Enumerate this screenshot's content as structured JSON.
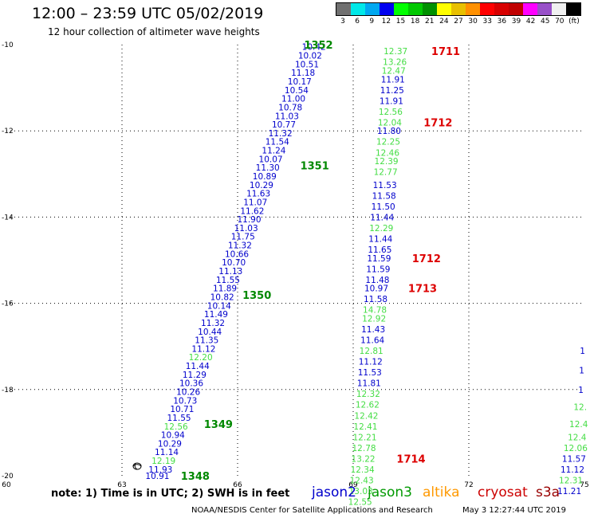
{
  "header": {
    "title": "12:00 – 23:59 UTC 05/02/2019",
    "subtitle": "12 hour collection of altimeter wave heights"
  },
  "legend": {
    "colors": [
      "#707070",
      "#00e8e8",
      "#00a8f0",
      "#0000f0",
      "#00ff00",
      "#00c800",
      "#009000",
      "#ffff00",
      "#e8c000",
      "#ff9000",
      "#ff0000",
      "#d80000",
      "#c00000",
      "#ff00ff",
      "#9850c8",
      "#f0f0f0",
      "#000000"
    ],
    "labels": [
      "3",
      "6",
      "9",
      "12",
      "15",
      "18",
      "21",
      "24",
      "27",
      "30",
      "33",
      "36",
      "39",
      "42",
      "45",
      "70",
      "(ft)"
    ]
  },
  "satellites": [
    {
      "name": "jason2",
      "color": "#0000cc"
    },
    {
      "name": "jason3",
      "color": "#009900"
    },
    {
      "name": "altika",
      "color": "#ff9900"
    },
    {
      "name": "cryosat",
      "color": "#cc0000"
    },
    {
      "name": "s3a",
      "color": "#990000"
    }
  ],
  "note": "note: 1) Time is in UTC; 2) SWH is in feet",
  "footer": {
    "credit": "NOAA/NESDIS Center for Satellite Applications and Research",
    "generated": "May  3 12:27:44 UTC 2019"
  },
  "chart_data": {
    "type": "scatter",
    "title": "12:00 – 23:59 UTC 05/02/2019",
    "subtitle": "12 hour collection of altimeter wave heights",
    "xlim": [
      60,
      75
    ],
    "ylim": [
      -20,
      -10
    ],
    "x_ticks": [
      "60",
      "63",
      "66",
      "69",
      "72",
      "75"
    ],
    "y_ticks": [
      "-10",
      "-12",
      "-14",
      "-16",
      "-18",
      "-20"
    ],
    "grid": true,
    "colors": {
      "blue": "#0000cc",
      "green": "#44dd44",
      "track_green": "#008800",
      "red": "#dd0000"
    },
    "tracks": [
      {
        "values": [
          {
            "v": "10.42",
            "x": 67.98,
            "y": -10.05,
            "c": "blue"
          },
          {
            "v": "10.02",
            "x": 67.88,
            "y": -10.25,
            "c": "blue"
          },
          {
            "v": "10.51",
            "x": 67.8,
            "y": -10.45,
            "c": "blue"
          },
          {
            "v": "11.18",
            "x": 67.7,
            "y": -10.65,
            "c": "blue"
          },
          {
            "v": "10.17",
            "x": 67.61,
            "y": -10.85,
            "c": "blue"
          },
          {
            "v": "10.54",
            "x": 67.53,
            "y": -11.05,
            "c": "blue"
          },
          {
            "v": "11.00",
            "x": 67.45,
            "y": -11.25,
            "c": "blue"
          },
          {
            "v": "10.78",
            "x": 67.37,
            "y": -11.45,
            "c": "blue"
          },
          {
            "v": "11.03",
            "x": 67.28,
            "y": -11.65,
            "c": "blue"
          },
          {
            "v": "10.77",
            "x": 67.2,
            "y": -11.85,
            "c": "blue"
          },
          {
            "v": "11.32",
            "x": 67.11,
            "y": -12.05,
            "c": "blue"
          },
          {
            "v": "11.54",
            "x": 67.03,
            "y": -12.25,
            "c": "blue"
          },
          {
            "v": "11.24",
            "x": 66.94,
            "y": -12.45,
            "c": "blue"
          },
          {
            "v": "10.07",
            "x": 66.86,
            "y": -12.65,
            "c": "blue"
          },
          {
            "v": "11.30",
            "x": 66.78,
            "y": -12.85,
            "c": "blue"
          },
          {
            "v": "10.89",
            "x": 66.7,
            "y": -13.05,
            "c": "blue"
          },
          {
            "v": "10.29",
            "x": 66.62,
            "y": -13.25,
            "c": "blue"
          },
          {
            "v": "11.63",
            "x": 66.54,
            "y": -13.45,
            "c": "blue"
          },
          {
            "v": "11.07",
            "x": 66.46,
            "y": -13.65,
            "c": "blue"
          },
          {
            "v": "11.62",
            "x": 66.38,
            "y": -13.85,
            "c": "blue"
          },
          {
            "v": "11.90",
            "x": 66.3,
            "y": -14.05,
            "c": "blue"
          },
          {
            "v": "11.03",
            "x": 66.22,
            "y": -14.25,
            "c": "blue"
          },
          {
            "v": "11.75",
            "x": 66.14,
            "y": -14.45,
            "c": "blue"
          },
          {
            "v": "11.32",
            "x": 66.06,
            "y": -14.65,
            "c": "blue"
          },
          {
            "v": "10.66",
            "x": 65.98,
            "y": -14.85,
            "c": "blue"
          },
          {
            "v": "10.70",
            "x": 65.9,
            "y": -15.05,
            "c": "blue"
          },
          {
            "v": "11.13",
            "x": 65.82,
            "y": -15.25,
            "c": "blue"
          },
          {
            "v": "11.55",
            "x": 65.75,
            "y": -15.45,
            "c": "blue"
          },
          {
            "v": "11.89",
            "x": 65.67,
            "y": -15.65,
            "c": "blue"
          },
          {
            "v": "10.82",
            "x": 65.6,
            "y": -15.85,
            "c": "blue"
          },
          {
            "v": "10.14",
            "x": 65.52,
            "y": -16.05,
            "c": "blue"
          },
          {
            "v": "11.49",
            "x": 65.44,
            "y": -16.25,
            "c": "blue"
          },
          {
            "v": "11.32",
            "x": 65.36,
            "y": -16.45,
            "c": "blue"
          },
          {
            "v": "10.44",
            "x": 65.28,
            "y": -16.65,
            "c": "blue"
          },
          {
            "v": "11.35",
            "x": 65.2,
            "y": -16.85,
            "c": "blue"
          },
          {
            "v": "11.12",
            "x": 65.12,
            "y": -17.05,
            "c": "blue"
          },
          {
            "v": "12.20",
            "x": 65.04,
            "y": -17.25,
            "c": "green"
          },
          {
            "v": "11.44",
            "x": 64.96,
            "y": -17.45,
            "c": "blue"
          },
          {
            "v": "11.29",
            "x": 64.88,
            "y": -17.65,
            "c": "blue"
          },
          {
            "v": "10.36",
            "x": 64.8,
            "y": -17.85,
            "c": "blue"
          },
          {
            "v": "10.26",
            "x": 64.72,
            "y": -18.05,
            "c": "blue"
          },
          {
            "v": "10.73",
            "x": 64.64,
            "y": -18.25,
            "c": "blue"
          },
          {
            "v": "10.71",
            "x": 64.56,
            "y": -18.45,
            "c": "blue"
          },
          {
            "v": "11.55",
            "x": 64.48,
            "y": -18.65,
            "c": "blue"
          },
          {
            "v": "12.56",
            "x": 64.4,
            "y": -18.85,
            "c": "green"
          },
          {
            "v": "10.94",
            "x": 64.32,
            "y": -19.05,
            "c": "blue"
          },
          {
            "v": "10.29",
            "x": 64.24,
            "y": -19.25,
            "c": "blue"
          },
          {
            "v": "11.14",
            "x": 64.16,
            "y": -19.45,
            "c": "blue"
          },
          {
            "v": "12.19",
            "x": 64.08,
            "y": -19.65,
            "c": "green"
          },
          {
            "v": "11.93",
            "x": 64.0,
            "y": -19.85,
            "c": "blue"
          },
          {
            "v": "10.91",
            "x": 63.92,
            "y": -20.0,
            "c": "blue"
          }
        ]
      },
      {
        "values": [
          {
            "v": "12.37",
            "x": 70.1,
            "y": -10.15,
            "c": "green"
          },
          {
            "v": "13.26",
            "x": 70.08,
            "y": -10.4,
            "c": "green"
          },
          {
            "v": "12.47",
            "x": 70.05,
            "y": -10.6,
            "c": "green"
          },
          {
            "v": "11.91",
            "x": 70.03,
            "y": -10.8,
            "c": "blue"
          },
          {
            "v": "11.25",
            "x": 70.01,
            "y": -11.05,
            "c": "blue"
          },
          {
            "v": "11.91",
            "x": 69.99,
            "y": -11.3,
            "c": "blue"
          },
          {
            "v": "12.56",
            "x": 69.97,
            "y": -11.55,
            "c": "green"
          },
          {
            "v": "12.04",
            "x": 69.95,
            "y": -11.8,
            "c": "green"
          },
          {
            "v": "11.80",
            "x": 69.93,
            "y": -12.0,
            "c": "blue"
          },
          {
            "v": "12.25",
            "x": 69.91,
            "y": -12.25,
            "c": "green"
          },
          {
            "v": "12.46",
            "x": 69.89,
            "y": -12.5,
            "c": "green"
          },
          {
            "v": "12.39",
            "x": 69.86,
            "y": -12.7,
            "c": "green"
          },
          {
            "v": "12.77",
            "x": 69.84,
            "y": -12.95,
            "c": "green"
          },
          {
            "v": "11.53",
            "x": 69.82,
            "y": -13.25,
            "c": "blue"
          },
          {
            "v": "11.58",
            "x": 69.8,
            "y": -13.5,
            "c": "blue"
          },
          {
            "v": "11.50",
            "x": 69.78,
            "y": -13.75,
            "c": "blue"
          },
          {
            "v": "11.44",
            "x": 69.75,
            "y": -14.0,
            "c": "blue"
          },
          {
            "v": "12.29",
            "x": 69.73,
            "y": -14.25,
            "c": "green"
          },
          {
            "v": "11.44",
            "x": 69.71,
            "y": -14.5,
            "c": "blue"
          },
          {
            "v": "11.65",
            "x": 69.69,
            "y": -14.75,
            "c": "blue"
          },
          {
            "v": "11.59",
            "x": 69.67,
            "y": -14.95,
            "c": "blue"
          },
          {
            "v": "11.59",
            "x": 69.65,
            "y": -15.2,
            "c": "blue"
          },
          {
            "v": "11.48",
            "x": 69.63,
            "y": -15.45,
            "c": "blue"
          },
          {
            "v": "10.97",
            "x": 69.6,
            "y": -15.65,
            "c": "blue"
          },
          {
            "v": "11.58",
            "x": 69.58,
            "y": -15.9,
            "c": "blue"
          },
          {
            "v": "14.78",
            "x": 69.56,
            "y": -16.15,
            "c": "green"
          },
          {
            "v": "12.92",
            "x": 69.54,
            "y": -16.35,
            "c": "green"
          },
          {
            "v": "11.43",
            "x": 69.52,
            "y": -16.6,
            "c": "blue"
          },
          {
            "v": "11.64",
            "x": 69.5,
            "y": -16.85,
            "c": "blue"
          },
          {
            "v": "12.81",
            "x": 69.47,
            "y": -17.1,
            "c": "green"
          },
          {
            "v": "11.12",
            "x": 69.45,
            "y": -17.35,
            "c": "blue"
          },
          {
            "v": "11.53",
            "x": 69.43,
            "y": -17.6,
            "c": "blue"
          },
          {
            "v": "11.81",
            "x": 69.41,
            "y": -17.85,
            "c": "blue"
          },
          {
            "v": "12.32",
            "x": 69.39,
            "y": -18.1,
            "c": "green"
          },
          {
            "v": "12.62",
            "x": 69.37,
            "y": -18.35,
            "c": "green"
          },
          {
            "v": "12.42",
            "x": 69.34,
            "y": -18.6,
            "c": "green"
          },
          {
            "v": "12.41",
            "x": 69.32,
            "y": -18.85,
            "c": "green"
          },
          {
            "v": "12.21",
            "x": 69.3,
            "y": -19.1,
            "c": "green"
          },
          {
            "v": "12.78",
            "x": 69.28,
            "y": -19.35,
            "c": "green"
          },
          {
            "v": "13.22",
            "x": 69.26,
            "y": -19.6,
            "c": "green"
          },
          {
            "v": "12.34",
            "x": 69.24,
            "y": -19.85,
            "c": "green"
          },
          {
            "v": "12.43",
            "x": 69.22,
            "y": -20.1,
            "c": "green"
          },
          {
            "v": "13.03",
            "x": 69.2,
            "y": -20.35,
            "c": "green"
          },
          {
            "v": "12.55",
            "x": 69.18,
            "y": -20.6,
            "c": "green"
          }
        ]
      },
      {
        "values": [
          {
            "v": "1",
            "x": 74.95,
            "y": -17.1,
            "c": "blue"
          },
          {
            "v": "1",
            "x": 74.93,
            "y": -17.55,
            "c": "blue"
          },
          {
            "v": "1",
            "x": 74.91,
            "y": -18.0,
            "c": "blue"
          },
          {
            "v": "12.",
            "x": 74.89,
            "y": -18.4,
            "c": "green"
          },
          {
            "v": "12.4",
            "x": 74.85,
            "y": -18.8,
            "c": "green"
          },
          {
            "v": "12.4",
            "x": 74.81,
            "y": -19.1,
            "c": "green"
          },
          {
            "v": "12.06",
            "x": 74.77,
            "y": -19.35,
            "c": "green"
          },
          {
            "v": "11.57",
            "x": 74.73,
            "y": -19.6,
            "c": "blue"
          },
          {
            "v": "11.12",
            "x": 74.69,
            "y": -19.85,
            "c": "blue"
          },
          {
            "v": "12.31",
            "x": 74.65,
            "y": -20.1,
            "c": "green"
          },
          {
            "v": "11.21",
            "x": 74.61,
            "y": -20.35,
            "c": "blue"
          }
        ]
      }
    ],
    "track_labels": [
      {
        "text": "1352",
        "x": 68.1,
        "y": -10.0,
        "c": "track_green"
      },
      {
        "text": "1351",
        "x": 68.0,
        "y": -12.8,
        "c": "track_green"
      },
      {
        "text": "1350",
        "x": 66.5,
        "y": -15.8,
        "c": "track_green"
      },
      {
        "text": "1349",
        "x": 65.5,
        "y": -18.8,
        "c": "track_green"
      },
      {
        "text": "1348",
        "x": 64.9,
        "y": -20.0,
        "c": "track_green"
      },
      {
        "text": "1711",
        "x": 71.4,
        "y": -10.15,
        "c": "red"
      },
      {
        "text": "1712",
        "x": 71.2,
        "y": -11.8,
        "c": "red"
      },
      {
        "text": "1712",
        "x": 70.9,
        "y": -14.95,
        "c": "red"
      },
      {
        "text": "1713",
        "x": 70.8,
        "y": -15.65,
        "c": "red"
      },
      {
        "text": "1714",
        "x": 70.5,
        "y": -19.6,
        "c": "red"
      }
    ]
  }
}
